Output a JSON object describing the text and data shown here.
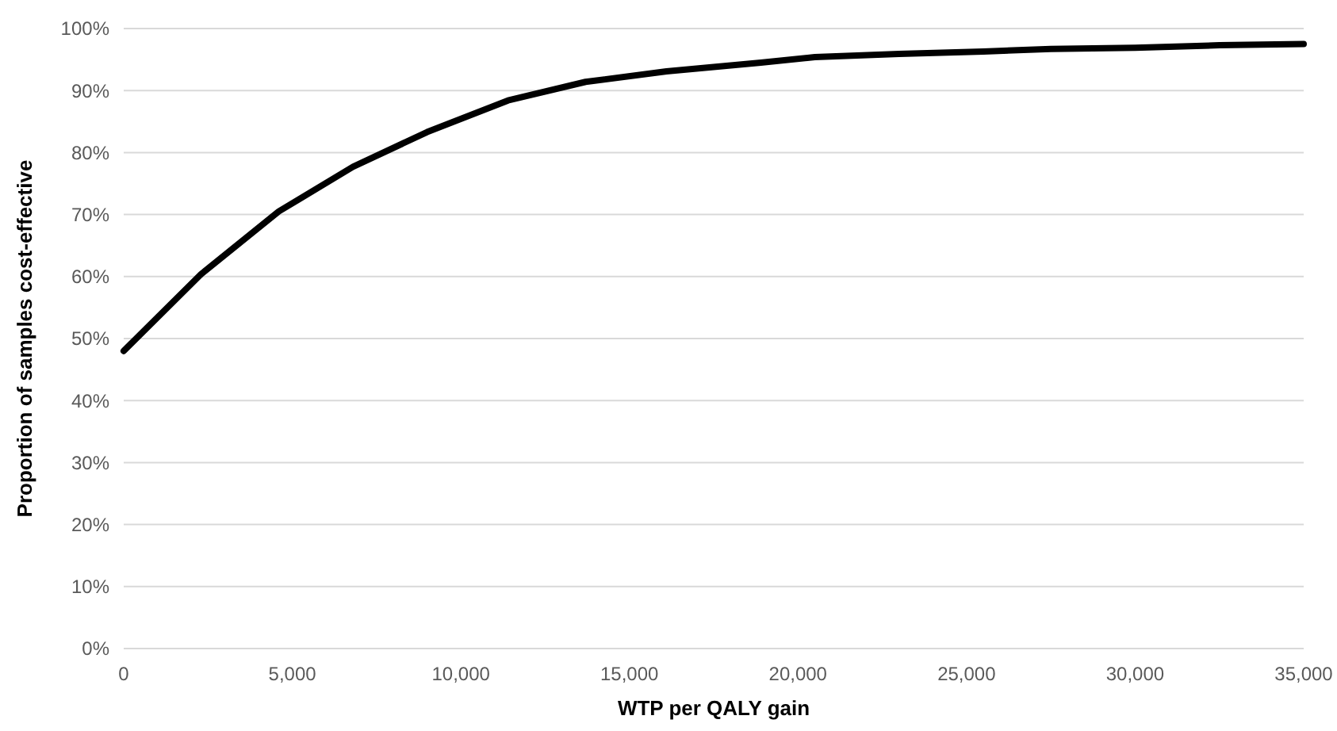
{
  "chart_data": {
    "type": "line",
    "xlabel": "WTP per QALY gain",
    "ylabel": "Proportion of samples cost-effective",
    "x": [
      0,
      2300,
      4600,
      6800,
      9000,
      11400,
      13700,
      16100,
      18900,
      20500,
      23000,
      25500,
      27500,
      30000,
      32500,
      35000
    ],
    "series": [
      {
        "color": "#000000",
        "values": [
          48,
          60.4,
          70.5,
          77.7,
          83.3,
          88.4,
          91.4,
          93.1,
          94.5,
          95.4,
          95.9,
          96.3,
          96.7,
          96.9,
          97.3,
          97.5
        ]
      }
    ],
    "xlim": [
      0,
      35000
    ],
    "xticks": [
      {
        "value": 0,
        "label": "0"
      },
      {
        "value": 5000,
        "label": "5,000"
      },
      {
        "value": 10000,
        "label": "10,000"
      },
      {
        "value": 15000,
        "label": "15,000"
      },
      {
        "value": 20000,
        "label": "20,000"
      },
      {
        "value": 25000,
        "label": "25,000"
      },
      {
        "value": 30000,
        "label": "30,000"
      },
      {
        "value": 35000,
        "label": "35,000"
      }
    ],
    "ylim": [
      0,
      100
    ],
    "yticks": [
      {
        "value": 0,
        "label": "0%"
      },
      {
        "value": 10,
        "label": "10%"
      },
      {
        "value": 20,
        "label": "20%"
      },
      {
        "value": 30,
        "label": "30%"
      },
      {
        "value": 40,
        "label": "40%"
      },
      {
        "value": 50,
        "label": "50%"
      },
      {
        "value": 60,
        "label": "60%"
      },
      {
        "value": 70,
        "label": "70%"
      },
      {
        "value": 80,
        "label": "80%"
      },
      {
        "value": 90,
        "label": "90%"
      },
      {
        "value": 100,
        "label": "100%"
      }
    ],
    "grid": "y",
    "marker": "none",
    "line_style": "solid"
  }
}
